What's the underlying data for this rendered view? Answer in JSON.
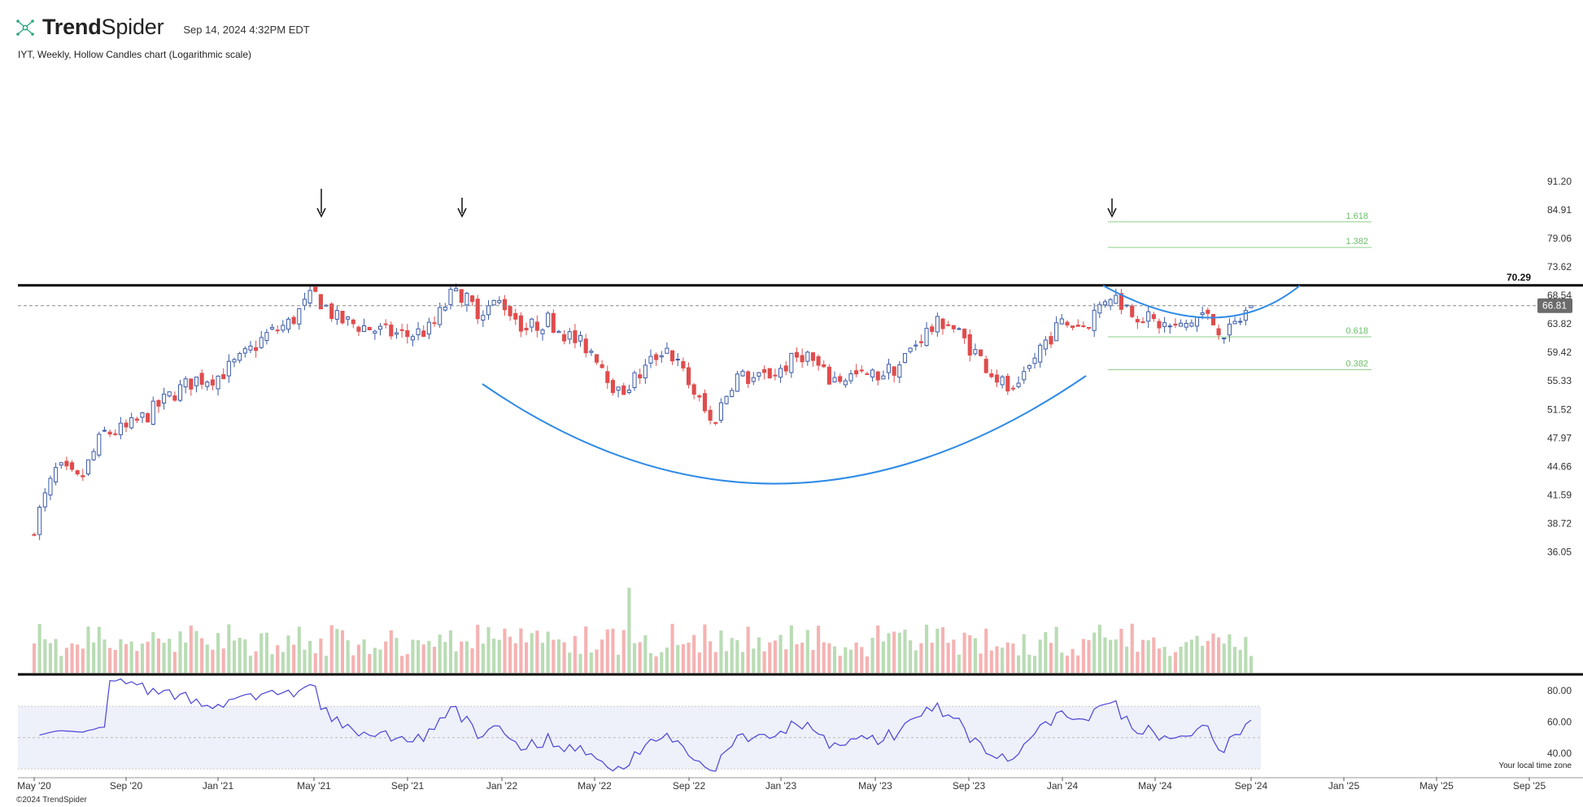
{
  "header": {
    "brand_light": "Trend",
    "brand_bold": "Spider",
    "timestamp": "Sep 14, 2024 4:32PM EDT",
    "subtitle": "IYT, Weekly, Hollow Candles chart (Logarithmic scale)",
    "copyright": "©2024 TrendSpider",
    "timezone_label": "Your local time zone"
  },
  "colors": {
    "up": "#3a5aa8",
    "down": "#e04c4c",
    "vol_up": "#b9dcb4",
    "vol_down": "#f5b2b2",
    "curve": "#2f8be6",
    "fib": "#8fd08c",
    "rsi": "#4a44d6",
    "rsi_band": "#eef0fa",
    "resistance": "#000000",
    "price_tag": "#6b6b6b"
  },
  "chart_data": {
    "type": "candlestick",
    "symbol": "IYT",
    "interval": "Weekly",
    "style": "Hollow Candles",
    "scale": "log",
    "price_axis_ticks": [
      "91.20",
      "84.91",
      "79.06",
      "73.62",
      "68.54",
      "63.82",
      "59.42",
      "55.33",
      "51.52",
      "47.97",
      "44.66",
      "41.59",
      "38.72",
      "36.05"
    ],
    "x_axis_ticks": [
      "May '20",
      "Sep '20",
      "Jan '21",
      "May '21",
      "Sep '21",
      "Jan '22",
      "May '22",
      "Sep '22",
      "Jan '23",
      "May '23",
      "Sep '23",
      "Jan '24",
      "May '24",
      "Sep '24",
      "Jan '25",
      "May '25",
      "Sep '25"
    ],
    "resistance_level": "70.29",
    "last_price": "66.81",
    "fib_levels": [
      {
        "label": "1.618",
        "price": 82.4
      },
      {
        "label": "1.382",
        "price": 77.3
      },
      {
        "label": "0.618",
        "price": 61.8
      },
      {
        "label": "0.382",
        "price": 56.9
      }
    ],
    "arrows_at": [
      "May '21",
      "Nov '21",
      "Mar '24"
    ],
    "close_path": [
      [
        "May '20",
        38.5
      ],
      [
        "Jun '20",
        44.5
      ],
      [
        "Jul '20",
        43.0
      ],
      [
        "Aug '20",
        48.5
      ],
      [
        "Sep '20",
        49.0
      ],
      [
        "Oct '20",
        51.0
      ],
      [
        "Nov '20",
        53.5
      ],
      [
        "Dec '20",
        55.5
      ],
      [
        "Jan '21",
        56.0
      ],
      [
        "Feb '21",
        58.5
      ],
      [
        "Mar '21",
        62.0
      ],
      [
        "Apr '21",
        64.0
      ],
      [
        "May '21",
        68.8
      ],
      [
        "Jun '21",
        64.5
      ],
      [
        "Jul '21",
        63.5
      ],
      [
        "Aug '21",
        62.5
      ],
      [
        "Sep '21",
        62.0
      ],
      [
        "Oct '21",
        63.0
      ],
      [
        "Nov '21",
        69.5
      ],
      [
        "Dec '21",
        66.0
      ],
      [
        "Jan '22",
        67.5
      ],
      [
        "Feb '22",
        63.0
      ],
      [
        "Mar '22",
        64.5
      ],
      [
        "Apr '22",
        61.5
      ],
      [
        "May '22",
        59.5
      ],
      [
        "Jun '22",
        53.5
      ],
      [
        "Jul '22",
        56.5
      ],
      [
        "Aug '22",
        60.5
      ],
      [
        "Sep '22",
        55.0
      ],
      [
        "Oct '22",
        49.5
      ],
      [
        "Nov '22",
        56.0
      ],
      [
        "Dec '22",
        55.5
      ],
      [
        "Jan '23",
        57.0
      ],
      [
        "Feb '23",
        59.5
      ],
      [
        "Mar '23",
        55.5
      ],
      [
        "Apr '23",
        56.0
      ],
      [
        "May '23",
        56.0
      ],
      [
        "Jun '23",
        57.5
      ],
      [
        "Jul '23",
        62.0
      ],
      [
        "Aug '23",
        64.5
      ],
      [
        "Sep '23",
        60.5
      ],
      [
        "Oct '23",
        56.5
      ],
      [
        "Nov '23",
        53.0
      ],
      [
        "Dec '23",
        60.0
      ],
      [
        "Jan '24",
        64.0
      ],
      [
        "Feb '24",
        63.5
      ],
      [
        "Mar '24",
        69.0
      ],
      [
        "Apr '24",
        66.0
      ],
      [
        "May '24",
        64.0
      ],
      [
        "Jun '24",
        63.0
      ],
      [
        "Jul '24",
        65.5
      ],
      [
        "Aug '24",
        62.0
      ],
      [
        "Sep '24",
        66.81
      ]
    ],
    "rsi": {
      "axis_ticks": [
        "80.00",
        "60.00",
        "40.00"
      ],
      "band": [
        30,
        70
      ]
    }
  }
}
